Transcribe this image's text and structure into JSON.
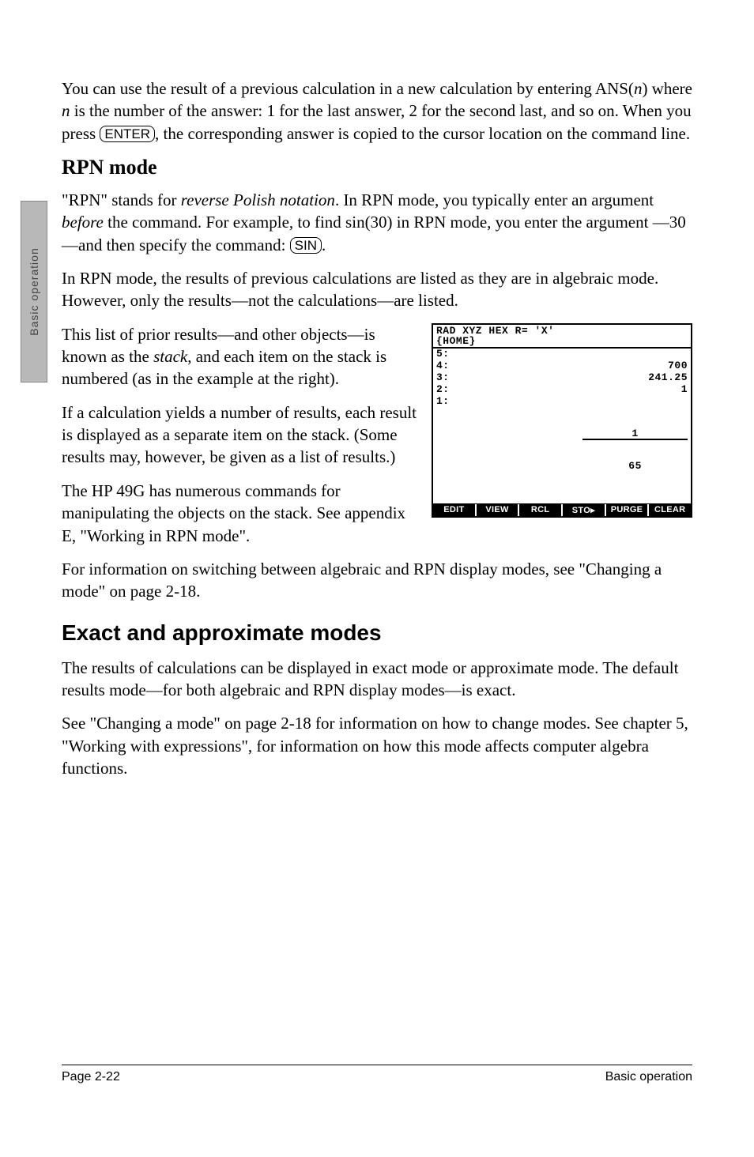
{
  "sidebar": {
    "label": "Basic operation"
  },
  "p_intro_1": "You can use the result of a previous calculation in a new calculation by entering ANS(",
  "p_intro_n1": "n",
  "p_intro_2": ") where ",
  "p_intro_n2": "n",
  "p_intro_3": " is the number of the answer: 1 for the last answer, 2 for the second last, and so on. When you press ",
  "key_enter": "ENTER",
  "p_intro_4": ", the corresponding answer is copied to the cursor location on the command line.",
  "h_rpn": "RPN mode",
  "p_rpn1_a": "\"RPN\" stands for ",
  "p_rpn1_term": "reverse Polish notation",
  "p_rpn1_b": ". In RPN mode, you typically enter an argument ",
  "p_rpn1_before": "before",
  "p_rpn1_c": " the command. For example, to find sin(30) in RPN mode, you enter the argument —30—and then specify the command: ",
  "key_sin": "SIN",
  "p_rpn1_d": ".",
  "p_rpn2": "In RPN mode, the results of previous calculations are listed as they are in algebraic mode. However, only the results—not the calculations—are listed.",
  "p_rpn3_a": "This list of prior results—and other objects—is known as the ",
  "p_rpn3_term": "stack",
  "p_rpn3_b": ", and each item on the stack is numbered (as in the example at the right).",
  "p_rpn4": "If a calculation yields a number of results, each result is displayed as a separate item on the stack. (Some results may, however, be given as a list of results.)",
  "p_rpn5": "The HP 49G has numerous commands for manipulating the objects on the stack. See appendix E, \"Working in RPN mode\".",
  "p_rpn6": "For information on switching between algebraic and RPN display modes, see \"Changing a mode\" on page 2-18.",
  "h_exact": "Exact and approximate modes",
  "p_ex1": "The results of calculations can be displayed in exact mode or approximate mode. The default results mode—for both algebraic and RPN display modes—is exact.",
  "p_ex2": "See \"Changing a mode\" on page 2-18 for information on how to change modes. See chapter 5, \"Working with expressions\", for information on how this mode affects computer algebra functions.",
  "calc": {
    "header_line1": "RAD XYZ HEX R= 'X'",
    "header_line2": "{HOME}",
    "rows": [
      {
        "left": "5:",
        "right": ""
      },
      {
        "left": "4:",
        "right": "700"
      },
      {
        "left": "3:",
        "right": "241.25"
      },
      {
        "left": "2:",
        "right": "1"
      }
    ],
    "frac_row_left": "1:",
    "frac_num": "1",
    "frac_den": "65",
    "softkeys": [
      "EDIT",
      "VIEW",
      "RCL",
      "STO▸",
      "PURGE",
      "CLEAR"
    ]
  },
  "footer": {
    "left": "Page 2-22",
    "right": "Basic operation"
  }
}
